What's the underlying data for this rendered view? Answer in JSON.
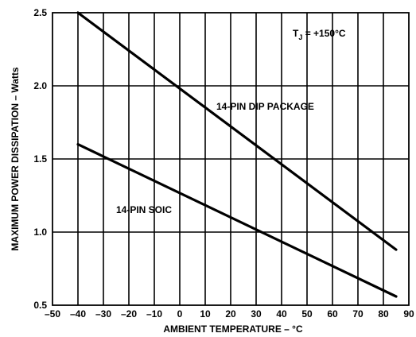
{
  "chart_data": {
    "type": "line",
    "title": "",
    "xlabel": "AMBIENT TEMPERATURE – °C",
    "ylabel": "MAXIMUM POWER DISSIPATION – Watts",
    "xlim": [
      -50,
      90
    ],
    "ylim": [
      0.5,
      2.5
    ],
    "x_ticks": [
      "–50",
      "–40",
      "–30",
      "–20",
      "–10",
      "0",
      "10",
      "20",
      "30",
      "40",
      "50",
      "60",
      "70",
      "80",
      "90"
    ],
    "y_ticks": [
      "0.5",
      "1.0",
      "1.5",
      "2.0",
      "2.5"
    ],
    "grid": {
      "x": true,
      "y": true
    },
    "series": [
      {
        "name": "14-PIN DIP PACKAGE",
        "points": [
          [
            -40,
            2.5
          ],
          [
            85,
            0.88
          ]
        ]
      },
      {
        "name": "14-PIN SOIC",
        "points": [
          [
            -40,
            1.6
          ],
          [
            85,
            0.56
          ]
        ]
      }
    ],
    "annotation_label": "T",
    "annotation_sub": "J",
    "annotation_value": " = +150°C"
  }
}
